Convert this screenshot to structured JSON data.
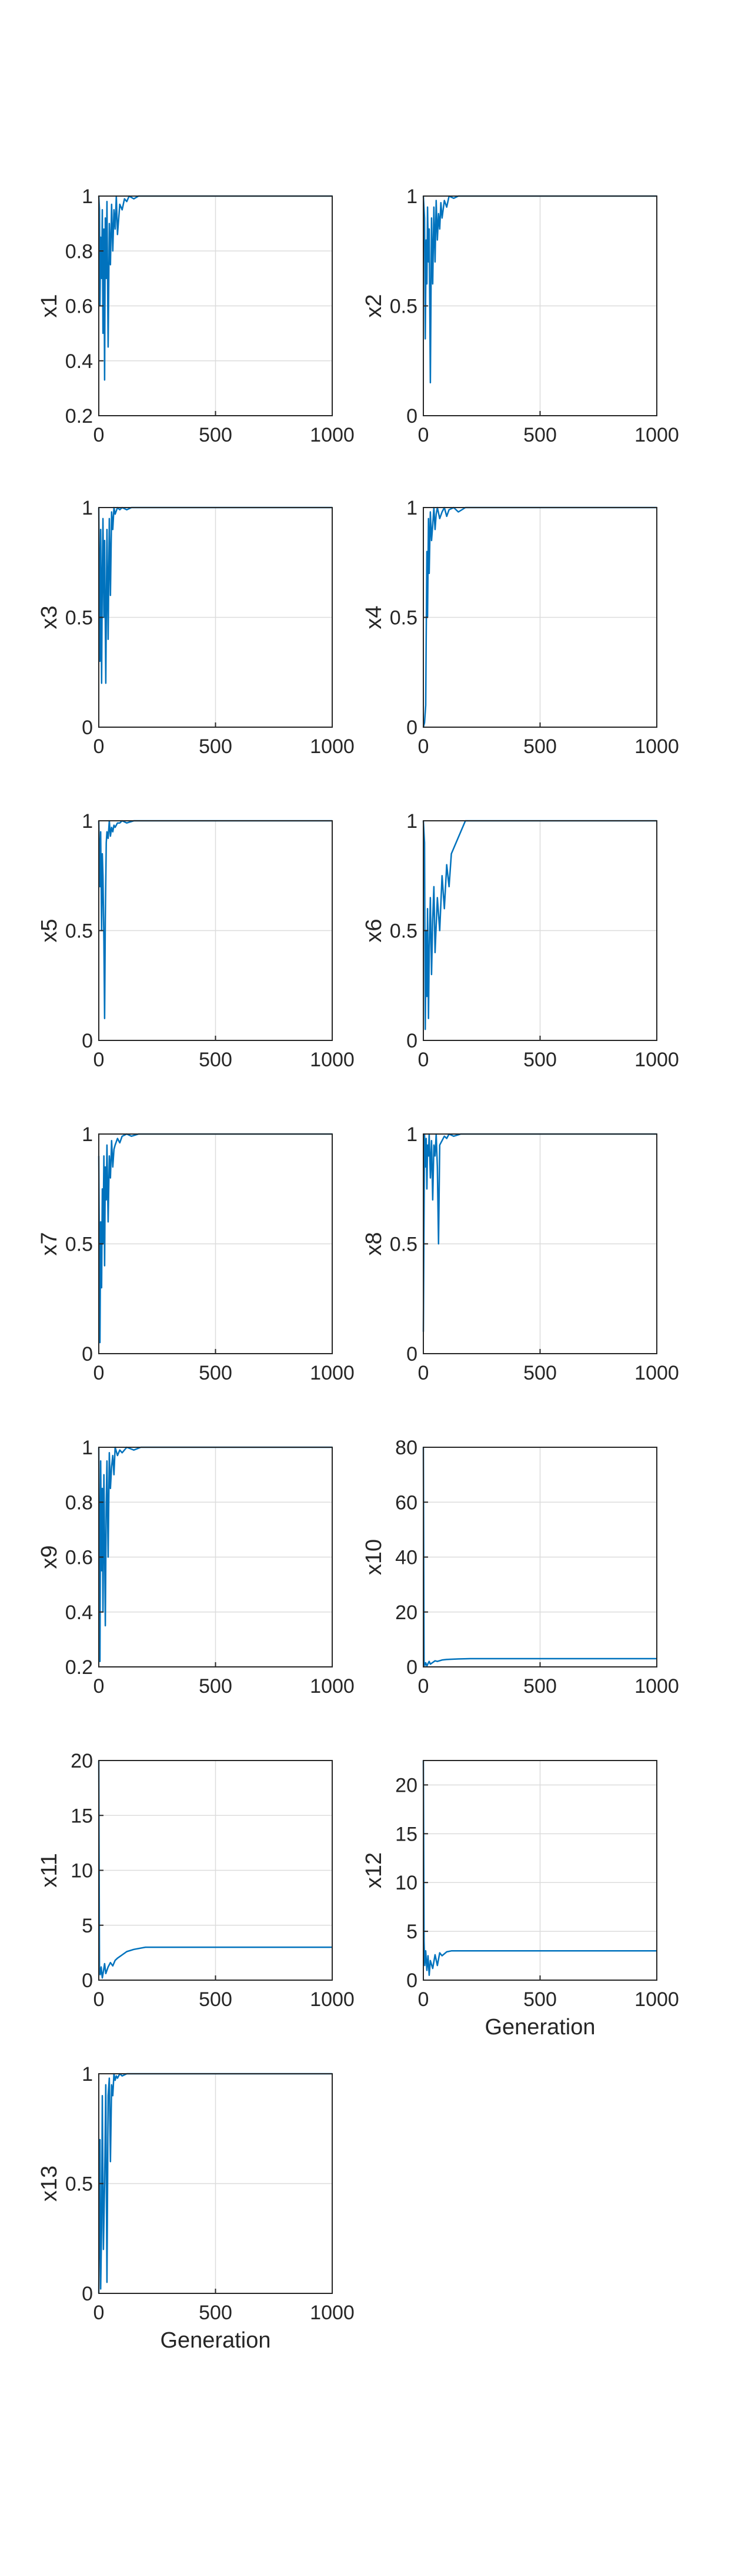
{
  "figure": {
    "background": "#ffffff",
    "line_color": "#0072BD",
    "grid_color": "#dcdcdc",
    "axis_color": "#262626"
  },
  "chart_data": [
    {
      "type": "line",
      "ylabel": "x1",
      "xlabel": "",
      "xlim": [
        0,
        1000
      ],
      "ylim": [
        0.2,
        1
      ],
      "grid": true,
      "xticks": [
        0,
        500,
        1000
      ],
      "yticks": [
        0.2,
        0.4,
        0.6,
        0.8,
        1
      ],
      "series": [
        {
          "x": [
            0,
            3,
            5,
            8,
            12,
            15,
            18,
            22,
            25,
            28,
            32,
            35,
            40,
            45,
            50,
            55,
            60,
            65,
            70,
            75,
            80,
            90,
            100,
            110,
            120,
            130,
            150,
            170,
            200,
            250,
            1000
          ],
          "y": [
            1,
            0.95,
            0.6,
            0.85,
            0.7,
            0.95,
            0.5,
            0.88,
            0.33,
            0.92,
            0.7,
            0.98,
            0.45,
            0.9,
            0.75,
            0.97,
            0.8,
            0.95,
            0.88,
            1,
            0.86,
            0.97,
            0.95,
            0.99,
            0.98,
            1,
            0.99,
            1,
            1,
            1,
            1
          ]
        }
      ]
    },
    {
      "type": "line",
      "ylabel": "x2",
      "xlabel": "",
      "xlim": [
        0,
        1000
      ],
      "ylim": [
        0,
        1
      ],
      "grid": true,
      "xticks": [
        0,
        500,
        1000
      ],
      "yticks": [
        0,
        0.5,
        1
      ],
      "series": [
        {
          "x": [
            0,
            5,
            8,
            12,
            15,
            18,
            22,
            25,
            30,
            35,
            40,
            45,
            50,
            55,
            60,
            65,
            70,
            75,
            80,
            90,
            100,
            110,
            130,
            150,
            180,
            220,
            1000
          ],
          "y": [
            1,
            0.9,
            0.35,
            0.8,
            0.6,
            0.95,
            0.7,
            0.85,
            0.15,
            0.9,
            0.6,
            0.95,
            0.7,
            0.98,
            0.8,
            0.92,
            0.85,
            0.97,
            0.9,
            0.98,
            0.95,
            1,
            0.99,
            1,
            1,
            1,
            1
          ]
        }
      ]
    },
    {
      "type": "line",
      "ylabel": "x3",
      "xlabel": "",
      "xlim": [
        0,
        1000
      ],
      "ylim": [
        0,
        1
      ],
      "grid": true,
      "xticks": [
        0,
        500,
        1000
      ],
      "yticks": [
        0,
        0.5,
        1
      ],
      "series": [
        {
          "x": [
            0,
            5,
            8,
            12,
            15,
            18,
            22,
            25,
            30,
            35,
            40,
            45,
            50,
            55,
            60,
            65,
            70,
            80,
            90,
            100,
            120,
            140,
            170,
            200,
            1000
          ],
          "y": [
            1,
            0.3,
            0.9,
            0.2,
            0.7,
            0.95,
            0.5,
            0.85,
            0.2,
            0.9,
            0.4,
            0.95,
            0.6,
            0.98,
            0.9,
            1,
            0.97,
            1,
            0.99,
            1,
            0.99,
            1,
            1,
            1,
            1
          ]
        }
      ]
    },
    {
      "type": "line",
      "ylabel": "x4",
      "xlabel": "",
      "xlim": [
        0,
        1000
      ],
      "ylim": [
        0,
        1
      ],
      "grid": true,
      "xticks": [
        0,
        500,
        1000
      ],
      "yticks": [
        0,
        0.5,
        1
      ],
      "series": [
        {
          "x": [
            0,
            5,
            10,
            12,
            15,
            18,
            22,
            25,
            30,
            35,
            40,
            45,
            50,
            55,
            60,
            70,
            80,
            90,
            100,
            110,
            130,
            150,
            180,
            220,
            1000
          ],
          "y": [
            0,
            0.02,
            0.1,
            0.4,
            0.8,
            0.5,
            0.95,
            0.7,
            0.98,
            0.85,
            0.92,
            1,
            0.9,
            0.97,
            1,
            0.95,
            0.98,
            1,
            0.96,
            0.99,
            1,
            0.98,
            1,
            1,
            1
          ]
        }
      ]
    },
    {
      "type": "line",
      "ylabel": "x5",
      "xlabel": "",
      "xlim": [
        0,
        1000
      ],
      "ylim": [
        0,
        1
      ],
      "grid": true,
      "xticks": [
        0,
        500,
        1000
      ],
      "yticks": [
        0,
        0.5,
        1
      ],
      "series": [
        {
          "x": [
            0,
            5,
            8,
            12,
            15,
            18,
            22,
            25,
            28,
            32,
            35,
            40,
            45,
            50,
            55,
            60,
            65,
            70,
            80,
            90,
            100,
            120,
            150,
            180,
            1000
          ],
          "y": [
            1,
            0.7,
            0.95,
            0.5,
            0.85,
            0.75,
            0.45,
            0.1,
            0.55,
            0.9,
            0.95,
            0.92,
            1,
            0.93,
            0.97,
            0.95,
            0.98,
            0.97,
            0.99,
            0.99,
            1,
            0.99,
            1,
            1,
            1
          ]
        }
      ]
    },
    {
      "type": "line",
      "ylabel": "x6",
      "xlabel": "",
      "xlim": [
        0,
        1000
      ],
      "ylim": [
        0,
        1
      ],
      "grid": true,
      "xticks": [
        0,
        500,
        1000
      ],
      "yticks": [
        0,
        0.5,
        1
      ],
      "series": [
        {
          "x": [
            0,
            5,
            8,
            12,
            15,
            18,
            22,
            25,
            30,
            35,
            40,
            45,
            50,
            60,
            70,
            80,
            90,
            100,
            110,
            120,
            140,
            160,
            180,
            200,
            1000
          ],
          "y": [
            1,
            0.9,
            0.05,
            0.5,
            0.2,
            0.6,
            0.1,
            0.4,
            0.65,
            0.3,
            0.55,
            0.7,
            0.4,
            0.65,
            0.5,
            0.75,
            0.6,
            0.8,
            0.7,
            0.85,
            0.9,
            0.95,
            1,
            1,
            1
          ]
        }
      ]
    },
    {
      "type": "line",
      "ylabel": "x7",
      "xlabel": "",
      "xlim": [
        0,
        1000
      ],
      "ylim": [
        0,
        1
      ],
      "grid": true,
      "xticks": [
        0,
        500,
        1000
      ],
      "yticks": [
        0,
        0.5,
        1
      ],
      "series": [
        {
          "x": [
            0,
            5,
            8,
            12,
            15,
            18,
            22,
            25,
            28,
            32,
            35,
            40,
            45,
            50,
            55,
            60,
            65,
            70,
            80,
            90,
            100,
            120,
            140,
            170,
            200,
            1000
          ],
          "y": [
            0.9,
            0.05,
            0.6,
            0.3,
            0.75,
            0.5,
            0.9,
            0.4,
            0.85,
            0.7,
            0.95,
            0.6,
            0.9,
            0.8,
            0.97,
            0.85,
            0.93,
            0.95,
            0.98,
            0.96,
            0.99,
            1,
            0.99,
            1,
            1,
            1
          ]
        }
      ]
    },
    {
      "type": "line",
      "ylabel": "x8",
      "xlabel": "",
      "xlim": [
        0,
        1000
      ],
      "ylim": [
        0,
        1
      ],
      "grid": true,
      "xticks": [
        0,
        500,
        1000
      ],
      "yticks": [
        0,
        0.5,
        1
      ],
      "series": [
        {
          "x": [
            0,
            5,
            8,
            12,
            15,
            18,
            22,
            25,
            30,
            35,
            40,
            45,
            50,
            55,
            60,
            65,
            70,
            80,
            90,
            100,
            110,
            130,
            160,
            200,
            1000
          ],
          "y": [
            0.1,
            1,
            0.85,
            0.98,
            0.75,
            0.95,
            0.9,
            1,
            0.8,
            0.97,
            0.7,
            0.95,
            0.9,
            1,
            0.85,
            0.5,
            0.95,
            0.97,
            0.99,
            0.98,
            1,
            0.99,
            1,
            1,
            1
          ]
        }
      ]
    },
    {
      "type": "line",
      "ylabel": "x9",
      "xlabel": "",
      "xlim": [
        0,
        1000
      ],
      "ylim": [
        0.2,
        1
      ],
      "grid": true,
      "xticks": [
        0,
        500,
        1000
      ],
      "yticks": [
        0.2,
        0.4,
        0.6,
        0.8,
        1
      ],
      "series": [
        {
          "x": [
            0,
            5,
            8,
            12,
            15,
            18,
            22,
            25,
            28,
            32,
            35,
            40,
            45,
            50,
            55,
            60,
            65,
            70,
            80,
            90,
            100,
            120,
            150,
            180,
            250,
            1000
          ],
          "y": [
            1,
            0.22,
            0.95,
            0.55,
            0.85,
            0.4,
            0.9,
            0.65,
            0.35,
            0.8,
            0.95,
            0.6,
            0.98,
            0.85,
            0.93,
            0.97,
            0.9,
            1,
            0.97,
            0.99,
            0.98,
            1,
            0.99,
            1,
            1,
            1
          ]
        }
      ]
    },
    {
      "type": "line",
      "ylabel": "x10",
      "xlabel": "",
      "xlim": [
        0,
        1000
      ],
      "ylim": [
        0,
        80
      ],
      "grid": true,
      "xticks": [
        0,
        500,
        1000
      ],
      "yticks": [
        0,
        20,
        40,
        60,
        80
      ],
      "series": [
        {
          "x": [
            0,
            3,
            6,
            10,
            15,
            20,
            25,
            30,
            40,
            50,
            60,
            80,
            100,
            150,
            200,
            250,
            300,
            1000
          ],
          "y": [
            80,
            2,
            0.5,
            1.5,
            0.3,
            1.2,
            2,
            1,
            1.6,
            2.2,
            2,
            2.5,
            2.7,
            2.9,
            3,
            3,
            3,
            3
          ]
        }
      ]
    },
    {
      "type": "line",
      "ylabel": "x11",
      "xlabel": "",
      "xlim": [
        0,
        1000
      ],
      "ylim": [
        0,
        20
      ],
      "grid": true,
      "xticks": [
        0,
        500,
        1000
      ],
      "yticks": [
        0,
        5,
        10,
        15,
        20
      ],
      "series": [
        {
          "x": [
            0,
            3,
            6,
            10,
            15,
            20,
            25,
            30,
            40,
            50,
            60,
            70,
            80,
            100,
            120,
            150,
            200,
            250,
            1000
          ],
          "y": [
            20,
            1,
            0.5,
            1.2,
            0.2,
            0.8,
            1.5,
            0.6,
            1.2,
            1.6,
            1.3,
            1.8,
            2,
            2.3,
            2.6,
            2.8,
            3,
            3,
            3
          ]
        }
      ]
    },
    {
      "type": "line",
      "ylabel": "x12",
      "xlabel": "Generation",
      "xlim": [
        0,
        1000
      ],
      "ylim": [
        0,
        22.5
      ],
      "grid": true,
      "xticks": [
        0,
        500,
        1000
      ],
      "yticks": [
        0,
        5,
        10,
        15,
        20
      ],
      "series": [
        {
          "x": [
            0,
            3,
            6,
            10,
            15,
            20,
            25,
            30,
            40,
            50,
            60,
            70,
            80,
            100,
            120,
            150,
            200,
            1000
          ],
          "y": [
            22.5,
            4,
            1.5,
            3,
            1,
            2.5,
            0.5,
            2,
            1.2,
            2.6,
            1.5,
            2.8,
            2.5,
            2.9,
            3,
            3,
            3,
            3
          ]
        }
      ]
    },
    {
      "type": "line",
      "ylabel": "x13",
      "xlabel": "Generation",
      "xlim": [
        0,
        1000
      ],
      "ylim": [
        0,
        1
      ],
      "grid": true,
      "xticks": [
        0,
        500,
        1000
      ],
      "yticks": [
        0,
        0.5,
        1
      ],
      "series": [
        {
          "x": [
            0,
            5,
            8,
            12,
            15,
            20,
            25,
            30,
            35,
            40,
            45,
            50,
            55,
            60,
            65,
            70,
            75,
            80,
            90,
            100,
            120,
            150,
            200,
            1000
          ],
          "y": [
            0,
            0.7,
            0.02,
            0.3,
            0.9,
            0.2,
            0.5,
            0.95,
            0.05,
            0.9,
            0.98,
            0.6,
            0.95,
            0.9,
            1,
            0.97,
            0.99,
            0.98,
            1,
            0.99,
            1,
            1,
            1,
            1
          ]
        }
      ]
    }
  ]
}
